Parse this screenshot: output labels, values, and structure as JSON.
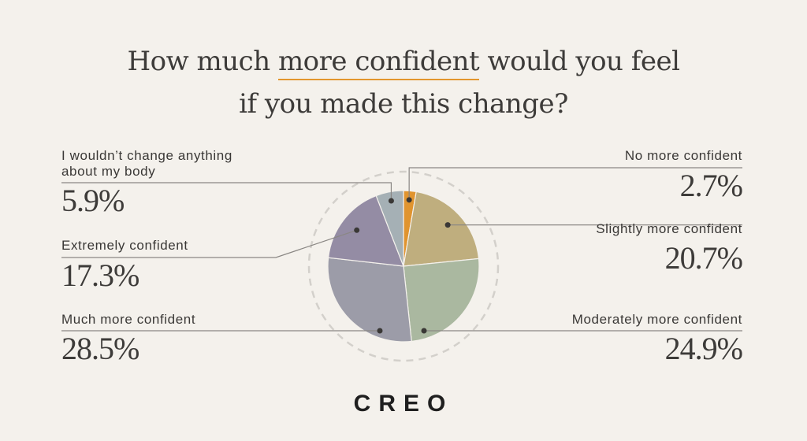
{
  "title": {
    "line1_pre": "How much ",
    "line1_highlight": "more confident",
    "line1_post": " would you feel",
    "line2": "if you made this change?"
  },
  "brand": "CREO",
  "colors": {
    "background": "#f4f1ec",
    "accent": "#e3962e"
  },
  "chart_data": {
    "type": "pie",
    "title": "How much more confident would you feel if you made this change?",
    "unit": "%",
    "slices": [
      {
        "label": "No more confident",
        "value": 2.7,
        "display": "2.7%",
        "color": "#e0942f"
      },
      {
        "label": "Slightly more confident",
        "value": 20.7,
        "display": "20.7%",
        "color": "#bfae7e"
      },
      {
        "label": "Moderately more confident",
        "value": 24.9,
        "display": "24.9%",
        "color": "#aab8a0"
      },
      {
        "label": "Much more confident",
        "value": 28.5,
        "display": "28.5%",
        "color": "#9c9ca8"
      },
      {
        "label": "Extremely confident",
        "value": 17.3,
        "display": "17.3%",
        "color": "#948ca4"
      },
      {
        "label": "I wouldn’t change anything about my body",
        "value": 5.9,
        "display": "5.9%",
        "color": "#a5b0b5"
      }
    ]
  }
}
